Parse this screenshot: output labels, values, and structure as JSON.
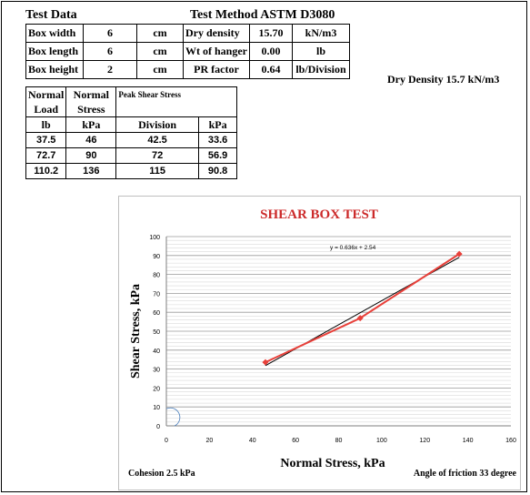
{
  "header": {
    "test_data": "Test Data",
    "method": "Test Method ASTM D3080"
  },
  "params": [
    [
      "Box width",
      "6",
      "cm",
      "Dry density",
      "15.70",
      "kN/m3"
    ],
    [
      "Box length",
      "6",
      "cm",
      "Wt of hanger",
      "0.00",
      "lb"
    ],
    [
      "Box height",
      "2",
      "cm",
      "PR factor",
      "0.64",
      "lb/Division"
    ]
  ],
  "dry_density_note": "Dry Density 15.7 kN/m3",
  "results": {
    "h_normal1": "Normal",
    "h_normal2": "Normal",
    "h_peak": "Peak Shear Stress",
    "h_load": "Load",
    "h_stress": "Stress",
    "u_lb": "lb",
    "u_kpa": "kPa",
    "u_division": "Division",
    "u_kpa2": "kPa",
    "rows": [
      [
        "37.5",
        "46",
        "42.5",
        "33.6"
      ],
      [
        "72.7",
        "90",
        "72",
        "56.9"
      ],
      [
        "110.2",
        "136",
        "115",
        "90.8"
      ]
    ]
  },
  "chart_data": {
    "type": "scatter",
    "title": "SHEAR BOX TEST",
    "xlabel": "Normal Stress, kPa",
    "ylabel": "Shear Stress, kPa",
    "xlim": [
      0,
      160
    ],
    "ylim": [
      0,
      100
    ],
    "xticks": [
      0,
      20,
      40,
      60,
      80,
      100,
      120,
      140,
      160
    ],
    "yticks": [
      0,
      10,
      20,
      30,
      40,
      50,
      60,
      70,
      80,
      90,
      100
    ],
    "grid": true,
    "series": [
      {
        "x": [
          46,
          90,
          136
        ],
        "y": [
          33.6,
          56.9,
          90.8
        ],
        "color": "#e8403a"
      }
    ],
    "trendline": {
      "slope": 0.636,
      "intercept": 2.54,
      "label": "y = 0.636x + 2.54",
      "color": "#000000"
    },
    "annotations": {
      "cohesion": "Cohesion 2.5 kPa",
      "friction": "Angle of friction 33 degree"
    }
  }
}
